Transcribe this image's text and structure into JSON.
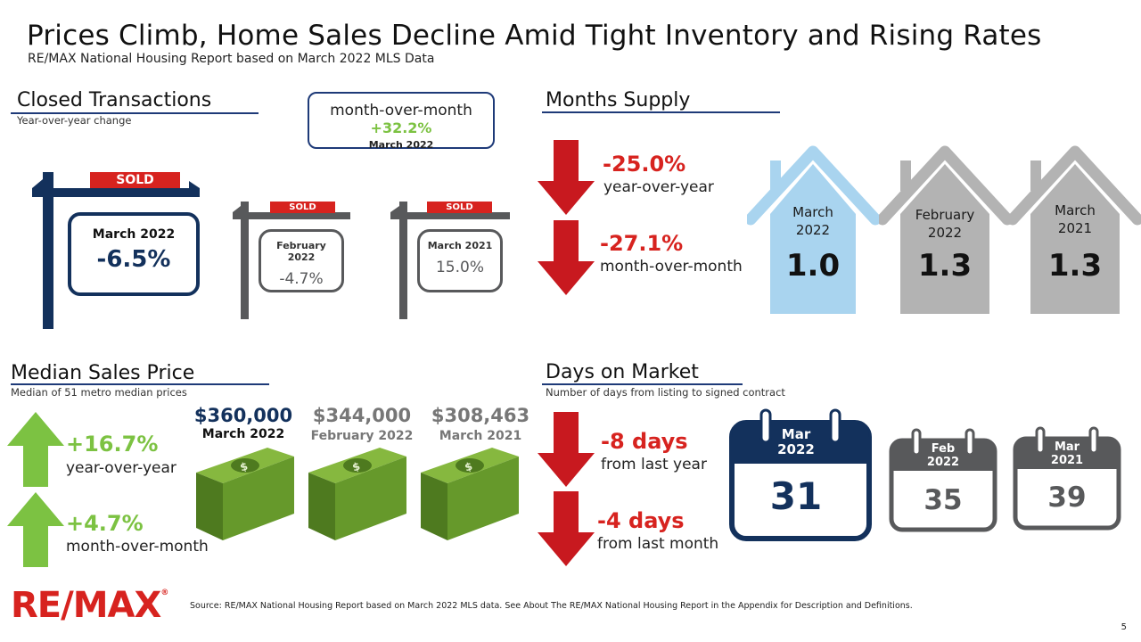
{
  "header": {
    "title": "Prices Climb, Home Sales Decline Amid Tight Inventory and Rising Rates",
    "subtitle": "RE/MAX National Housing Report based on March 2022 MLS Data"
  },
  "closed_transactions": {
    "title": "Closed Transactions",
    "subtitle": "Year-over-year change",
    "mom_box": {
      "label": "month-over-month",
      "value": "+32.2%",
      "period": "March 2022"
    },
    "signs": [
      {
        "sold": "SOLD",
        "period": "March 2022",
        "value": "-6.5%",
        "color": "#13315c"
      },
      {
        "sold": "SOLD",
        "period": "February 2022",
        "value": "-4.7%",
        "color": "#58595b"
      },
      {
        "sold": "SOLD",
        "period": "March 2021",
        "value": "15.0%",
        "color": "#58595b"
      }
    ]
  },
  "months_supply": {
    "title": "Months Supply",
    "stats": [
      {
        "value": "-25.0%",
        "desc": "year-over-year",
        "direction": "down"
      },
      {
        "value": "-27.1%",
        "desc": "month-over-month",
        "direction": "down"
      }
    ],
    "houses": [
      {
        "line1": "March",
        "line2": "2022",
        "value": "1.0",
        "color": "#a9d4ef"
      },
      {
        "line1": "February",
        "line2": "2022",
        "value": "1.3",
        "color": "#b3b3b3"
      },
      {
        "line1": "March",
        "line2": "2021",
        "value": "1.3",
        "color": "#b3b3b3"
      }
    ]
  },
  "median_sales_price": {
    "title": "Median Sales Price",
    "subtitle": "Median of 51 metro median prices",
    "stats": [
      {
        "value": "+16.7%",
        "desc": "year-over-year",
        "direction": "up"
      },
      {
        "value": "+4.7%",
        "desc": "month-over-month",
        "direction": "up"
      }
    ],
    "prices": [
      {
        "value": "$360,000",
        "period": "March 2022",
        "color": "#13315c"
      },
      {
        "value": "$344,000",
        "period": "February 2022",
        "color": "#777777"
      },
      {
        "value": "$308,463",
        "period": "March 2021",
        "color": "#777777"
      }
    ]
  },
  "days_on_market": {
    "title": "Days on Market",
    "subtitle": "Number of days from listing to signed contract",
    "stats": [
      {
        "value": "-8 days",
        "desc": "from last year",
        "direction": "down"
      },
      {
        "value": "-4 days",
        "desc": "from last month",
        "direction": "down"
      }
    ],
    "calendars": [
      {
        "month": "Mar",
        "year": "2022",
        "value": "31",
        "color": "#13315c"
      },
      {
        "month": "Feb",
        "year": "2022",
        "value": "35",
        "color": "#58595b"
      },
      {
        "month": "Mar",
        "year": "2021",
        "value": "39",
        "color": "#58595b"
      }
    ]
  },
  "footer": {
    "logo": "RE/MAX",
    "logo_mark": "®",
    "source": "Source: RE/MAX National Housing Report based on March 2022 MLS data. See About The RE/MAX National Housing Report in the Appendix for Description and Definitions.",
    "page": "5"
  },
  "colors": {
    "accent_red": "#d7231f",
    "accent_green": "#7cc242",
    "navy": "#13315c",
    "money_green": "#6a9a2e"
  }
}
